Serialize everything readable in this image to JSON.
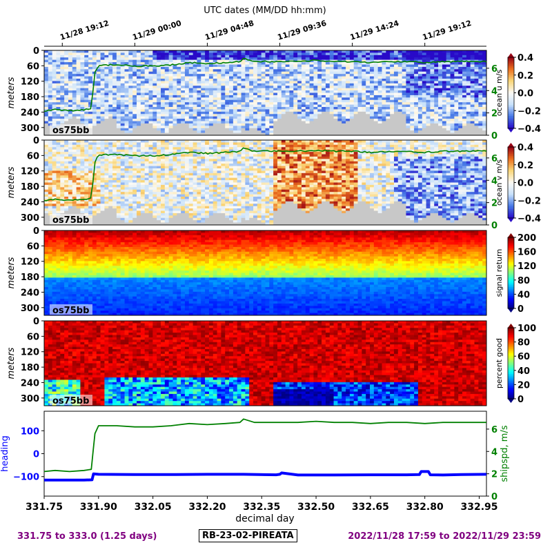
{
  "top_axis": {
    "title": "UTC dates (MM/DD hh:mm)",
    "ticks": [
      {
        "label": "11/28 19:12",
        "day": 331.8
      },
      {
        "label": "11/29 00:00",
        "day": 332.0
      },
      {
        "label": "11/29 04:48",
        "day": 332.2
      },
      {
        "label": "11/29 09:36",
        "day": 332.4
      },
      {
        "label": "11/29 14:24",
        "day": 332.6
      },
      {
        "label": "11/29 19:12",
        "day": 332.8
      }
    ]
  },
  "depth_ticks": [
    "0",
    "60",
    "120",
    "180",
    "240",
    "300"
  ],
  "depth_values": [
    0,
    60,
    120,
    180,
    240,
    300
  ],
  "ylabel_depth": "meters",
  "instrument_tag": "os75bb",
  "shipspd_ticks": [
    "0",
    "2",
    "4",
    "6"
  ],
  "colors": {
    "shipspd": "#008000",
    "heading": "#0000ff",
    "footer": "#800080",
    "bottom_fill": "#c8c8c8"
  },
  "chart_data": [
    {
      "type": "heatmap",
      "name": "ocean u",
      "colorbar_label": "ocean u m/s",
      "colormap": "blue-white-red",
      "clim": [
        -0.4,
        0.4
      ],
      "colorbar_ticks": [
        "0.4",
        "0.2",
        "0.0",
        "−0.2",
        "−0.4"
      ],
      "ylim_m": [
        0,
        330
      ],
      "overlay_shipspd": true
    },
    {
      "type": "heatmap",
      "name": "ocean v",
      "colorbar_label": "ocean v m/s",
      "colormap": "blue-white-red",
      "clim": [
        -0.4,
        0.4
      ],
      "colorbar_ticks": [
        "0.4",
        "0.2",
        "0.0",
        "−0.2",
        "−0.4"
      ],
      "ylim_m": [
        0,
        330
      ],
      "overlay_shipspd": true
    },
    {
      "type": "heatmap",
      "name": "signal return",
      "colorbar_label": "signal return",
      "colormap": "jet",
      "clim": [
        0,
        210
      ],
      "colorbar_ticks": [
        "200",
        "160",
        "120",
        "80",
        "40",
        "0"
      ],
      "ylim_m": [
        0,
        330
      ]
    },
    {
      "type": "heatmap",
      "name": "percent good",
      "colorbar_label": "percent good",
      "colormap": "jet",
      "clim": [
        0,
        100
      ],
      "colorbar_ticks": [
        "100",
        "80",
        "60",
        "40",
        "20",
        "0"
      ],
      "ylim_m": [
        0,
        330
      ]
    },
    {
      "type": "line",
      "xlabel": "decimal day",
      "xlim": [
        331.75,
        332.97
      ],
      "x_ticks": [
        "331.75",
        "331.90",
        "332.05",
        "332.20",
        "332.35",
        "332.50",
        "332.65",
        "332.80",
        "332.95"
      ],
      "x_tick_values": [
        331.75,
        331.9,
        332.05,
        332.2,
        332.35,
        332.5,
        332.65,
        332.8,
        332.95
      ],
      "left_axis": {
        "label": "heading",
        "ticks": [
          "100",
          "0",
          "−100"
        ],
        "tick_values": [
          100,
          0,
          -100
        ],
        "ylim": [
          -185,
          185
        ]
      },
      "right_axis": {
        "label": "shipspd, m/s",
        "ticks": [
          "6",
          "4",
          "2",
          "0"
        ],
        "tick_values": [
          6,
          4,
          2,
          0
        ],
        "ylim": [
          0,
          7.6
        ]
      },
      "series": [
        {
          "name": "heading",
          "axis": "left",
          "x": [
            331.75,
            331.8,
            331.86,
            331.882,
            331.886,
            331.9,
            332.0,
            332.1,
            332.2,
            332.3,
            332.39,
            332.4,
            332.405,
            332.45,
            332.55,
            332.65,
            332.75,
            332.785,
            332.79,
            332.81,
            332.815,
            332.85,
            332.9,
            332.97
          ],
          "y": [
            -115,
            -115,
            -115,
            -114,
            -88,
            -90,
            -91,
            -91,
            -90,
            -90,
            -92,
            -90,
            -84,
            -93,
            -93,
            -92,
            -92,
            -91,
            -78,
            -78,
            -92,
            -93,
            -91,
            -90
          ]
        },
        {
          "name": "shipspd",
          "axis": "right",
          "x": [
            331.75,
            331.78,
            331.82,
            331.86,
            331.88,
            331.885,
            331.89,
            331.9,
            331.95,
            332.0,
            332.05,
            332.1,
            332.15,
            332.2,
            332.25,
            332.29,
            332.3,
            332.33,
            332.4,
            332.45,
            332.5,
            332.55,
            332.6,
            332.65,
            332.7,
            332.75,
            332.8,
            332.85,
            332.9,
            332.97
          ],
          "y": [
            2.2,
            2.3,
            2.2,
            2.3,
            2.4,
            4.0,
            5.6,
            6.3,
            6.3,
            6.2,
            6.2,
            6.3,
            6.5,
            6.4,
            6.5,
            6.6,
            6.9,
            6.6,
            6.6,
            6.6,
            6.7,
            6.6,
            6.6,
            6.5,
            6.6,
            6.6,
            6.5,
            6.6,
            6.6,
            6.6
          ]
        }
      ]
    }
  ],
  "footer": {
    "left": "331.75 to 333.0 (1.25 days)",
    "center": "RB-23-02-PIREATA",
    "right": "2022/11/28 17:59 to 2022/11/29 23:59"
  }
}
